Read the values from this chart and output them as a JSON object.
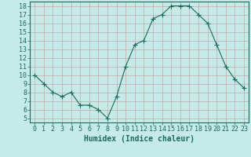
{
  "x": [
    0,
    1,
    2,
    3,
    4,
    5,
    6,
    7,
    8,
    9,
    10,
    11,
    12,
    13,
    14,
    15,
    16,
    17,
    18,
    19,
    20,
    21,
    22,
    23
  ],
  "y": [
    10,
    9,
    8,
    7.5,
    8,
    6.5,
    6.5,
    6,
    5,
    7.5,
    11,
    13.5,
    14,
    16.5,
    17,
    18,
    18,
    18,
    17,
    16,
    13.5,
    11,
    9.5,
    8.5
  ],
  "line_color": "#1a6b5a",
  "marker": "+",
  "marker_size": 4,
  "bg_color": "#c5eae7",
  "grid_color": "#c4a8a8",
  "xlabel": "Humidex (Indice chaleur)",
  "xlim": [
    -0.5,
    23.5
  ],
  "ylim": [
    4.5,
    18.5
  ],
  "yticks": [
    5,
    6,
    7,
    8,
    9,
    10,
    11,
    12,
    13,
    14,
    15,
    16,
    17,
    18
  ],
  "xticks": [
    0,
    1,
    2,
    3,
    4,
    5,
    6,
    7,
    8,
    9,
    10,
    11,
    12,
    13,
    14,
    15,
    16,
    17,
    18,
    19,
    20,
    21,
    22,
    23
  ],
  "tick_color": "#1a6b5a",
  "label_fontsize": 7,
  "tick_fontsize": 6
}
